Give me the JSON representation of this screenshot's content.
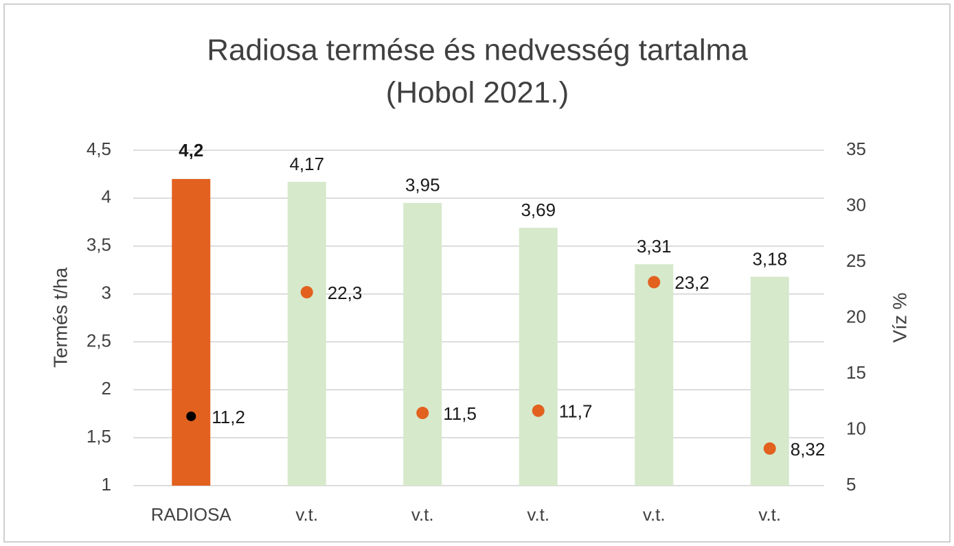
{
  "chart_data": {
    "type": "bar",
    "title": "Radiosa termése és nedvesség tartalma",
    "subtitle": "(Hobol 2021.)",
    "y_label": "Termés t/ha",
    "y2_label": "Víz %",
    "categories": [
      "RADIOSA",
      "v.t.",
      "v.t.",
      "v.t.",
      "v.t.",
      "v.t."
    ],
    "ylim": [
      1,
      4.5
    ],
    "yticks": [
      1,
      {
        "value": 1.5,
        "label": "1,5"
      },
      2,
      {
        "value": 2.5,
        "label": "2,5"
      },
      3,
      {
        "value": 3.5,
        "label": "3,5"
      },
      4,
      {
        "value": 4.5,
        "label": "4,5"
      }
    ],
    "y2lim": [
      5,
      35
    ],
    "y2ticks": [
      5,
      10,
      15,
      20,
      25,
      30,
      35
    ],
    "grid": true,
    "series": [
      {
        "type": "bar",
        "values": [
          4.2,
          4.17,
          3.95,
          3.69,
          3.31,
          3.18
        ],
        "value_labels": [
          "4,2",
          "4,17",
          "3,95",
          "3,69",
          "3,31",
          "3,18"
        ],
        "colors": [
          "#e2611f",
          "#d6e9cb",
          "#d6e9cb",
          "#d6e9cb",
          "#d6e9cb",
          "#d6e9cb"
        ]
      },
      {
        "type": "scatter",
        "axis": "y2",
        "values": [
          11.2,
          22.3,
          11.5,
          11.7,
          23.2,
          8.32
        ],
        "value_labels": [
          "11,2",
          "22,3",
          "11,5",
          "11,7",
          "23,2",
          "8,32"
        ],
        "colors": [
          "#000000",
          "#e2611f",
          "#e2611f",
          "#e2611f",
          "#e2611f",
          "#e2611f"
        ]
      }
    ]
  }
}
